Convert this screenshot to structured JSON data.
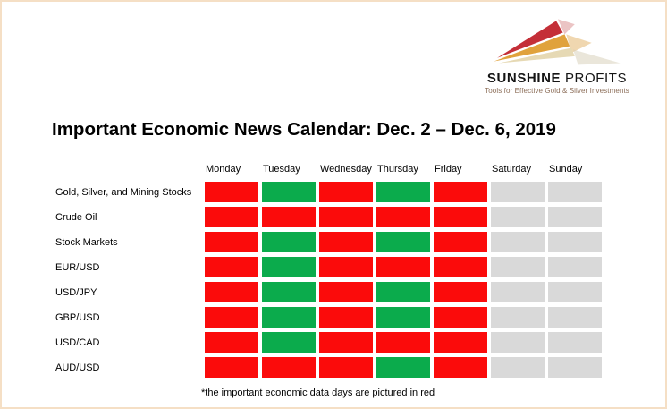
{
  "logo": {
    "name_bold": "SUNSHINE",
    "name_light": "PROFITS",
    "tagline": "Tools for Effective Gold & Silver Investments"
  },
  "colors": {
    "page_border": "#F5DFC5",
    "important_day_red": "#FB0B0B",
    "no_news_day_green": "#0BAB4C",
    "weekend_day_gray": "#D9D9D9",
    "logo_red": "#C42F38",
    "logo_gold": "#E0A23C",
    "logo_cream": "#E6D9B4",
    "tagline_text": "#8D6F5A"
  },
  "chart_data": {
    "type": "heatmap",
    "title": "Important Economic News Calendar: Dec. 2 – Dec. 6, 2019",
    "columns": [
      "Monday",
      "Tuesday",
      "Wednesday",
      "Thursday",
      "Friday",
      "Saturday",
      "Sunday"
    ],
    "rows": [
      "Gold, Silver, and Mining Stocks",
      "Crude Oil",
      "Stock Markets",
      "EUR/USD",
      "USD/JPY",
      "GBP/USD",
      "USD/CAD",
      "AUD/USD"
    ],
    "cell_states": {
      "red": "important economic data day",
      "green": "no important economic data",
      "gray": "weekend"
    },
    "state_colors": {
      "red": "#FB0B0B",
      "green": "#0BAB4C",
      "gray": "#D9D9D9"
    },
    "values": [
      [
        "red",
        "green",
        "red",
        "green",
        "red",
        "gray",
        "gray"
      ],
      [
        "red",
        "red",
        "red",
        "red",
        "red",
        "gray",
        "gray"
      ],
      [
        "red",
        "green",
        "red",
        "green",
        "red",
        "gray",
        "gray"
      ],
      [
        "red",
        "green",
        "red",
        "red",
        "red",
        "gray",
        "gray"
      ],
      [
        "red",
        "green",
        "red",
        "green",
        "red",
        "gray",
        "gray"
      ],
      [
        "red",
        "green",
        "red",
        "green",
        "red",
        "gray",
        "gray"
      ],
      [
        "red",
        "green",
        "red",
        "red",
        "red",
        "gray",
        "gray"
      ],
      [
        "red",
        "red",
        "red",
        "green",
        "red",
        "gray",
        "gray"
      ]
    ],
    "annotation": "*the important economic data days are pictured in red",
    "legend_position": "none",
    "grid": false
  }
}
